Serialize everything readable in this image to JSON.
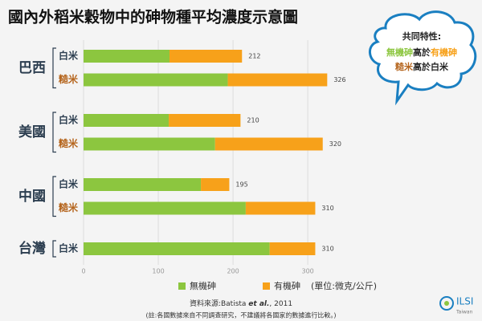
{
  "chart_data": {
    "type": "stacked-bar-horizontal",
    "title": "國內外稻米穀物中的砷物種平均濃度示意圖",
    "groups": [
      {
        "name": "巴西",
        "categories": [
          "白米",
          "糙米"
        ]
      },
      {
        "name": "美國",
        "categories": [
          "白米",
          "糙米"
        ]
      },
      {
        "name": "中國",
        "categories": [
          "白米",
          "糙米"
        ]
      },
      {
        "name": "台灣",
        "categories": [
          "白米"
        ]
      }
    ],
    "category_colors": {
      "白米": "#2c3e50",
      "糙米": "#b5651d"
    },
    "series": [
      {
        "name": "無機砷",
        "color": "#8cc63f",
        "values": [
          115,
          193,
          114,
          176,
          157,
          217,
          249
        ]
      },
      {
        "name": "有機砷",
        "color": "#f7a11a",
        "values": [
          97,
          133,
          96,
          144,
          38,
          93,
          61
        ]
      }
    ],
    "total_labels": [
      212,
      326,
      210,
      320,
      195,
      310,
      310
    ],
    "unit": "(單位:微克/公斤)",
    "xlim": [
      0,
      345
    ],
    "xticks": [
      0,
      100,
      200,
      300
    ],
    "grid": true,
    "callout": {
      "title": "共同特性:",
      "lines": [
        [
          {
            "text": "無機砷",
            "color": "#8cc63f"
          },
          {
            "text": "高於",
            "color": "#222222"
          },
          {
            "text": "有機砷",
            "color": "#f7a11a"
          }
        ],
        [
          {
            "text": "糙米",
            "color": "#b5651d"
          },
          {
            "text": "高於白米",
            "color": "#222222"
          }
        ]
      ]
    },
    "source": [
      "資料來源:Batista ",
      "et al.",
      ", 2011"
    ],
    "note": "(註:各國數據來自不同調查研究，不建議將各國家的數據進行比較。)",
    "logo": {
      "name": "ILSI",
      "sub": "Taiwan"
    }
  }
}
